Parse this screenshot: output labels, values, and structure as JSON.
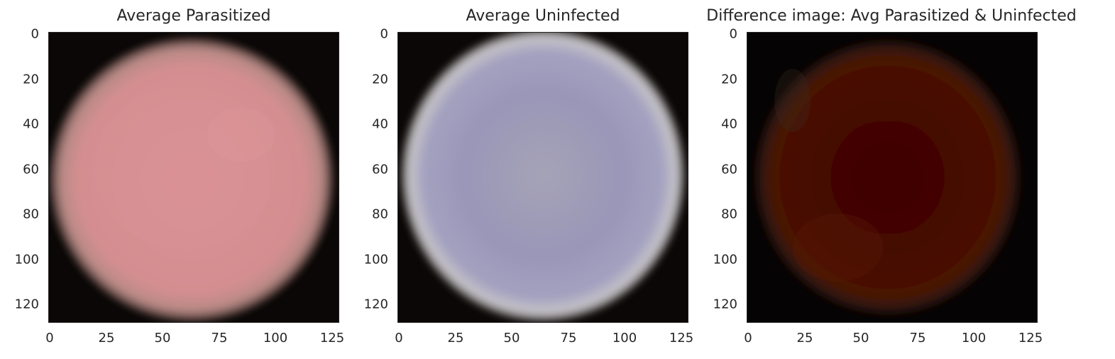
{
  "panels": [
    {
      "title": "Average Parasitized",
      "image": {
        "name": "average-parasitized-cell",
        "dominant_color": "#d88f92",
        "background_color": "#0a0706"
      }
    },
    {
      "title": "Average Uninfected",
      "image": {
        "name": "average-uninfected-cell",
        "dominant_color": "#9b97b8",
        "background_color": "#0a0706"
      }
    },
    {
      "title": "Difference image: Avg Parasitized & Uninfected",
      "image": {
        "name": "difference-image",
        "dominant_color": "#4a0a02",
        "background_color": "#050303"
      }
    }
  ],
  "axes": {
    "y_ticks": [
      "0",
      "20",
      "40",
      "60",
      "80",
      "100",
      "120"
    ],
    "x_ticks": [
      "0",
      "25",
      "50",
      "75",
      "100",
      "125"
    ],
    "y_values": [
      0,
      20,
      40,
      60,
      80,
      100,
      120
    ],
    "x_values": [
      0,
      25,
      50,
      75,
      100,
      125
    ],
    "extent": [
      128,
      128
    ]
  }
}
